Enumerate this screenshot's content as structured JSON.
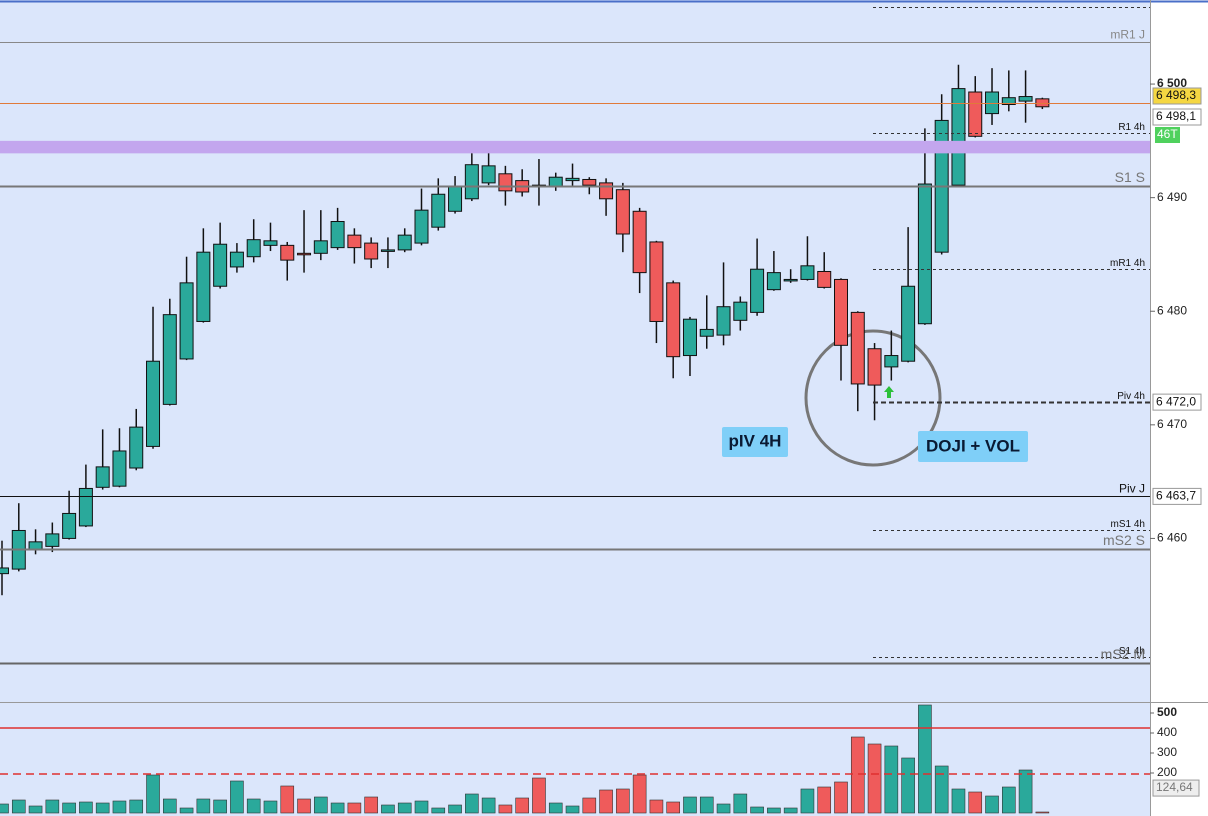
{
  "chart_data": {
    "type": "candlestick",
    "open": [
      6456.9,
      6457.3,
      6459.0,
      6459.3,
      6460.0,
      6461.1,
      6464.5,
      6464.6,
      6466.2,
      6468.1,
      6471.8,
      6475.8,
      6479.1,
      6482.2,
      6483.9,
      6484.8,
      6485.8,
      6485.8,
      6485.1,
      6485.1,
      6485.6,
      6486.7,
      6486.0,
      6485.3,
      6485.4,
      6486.0,
      6487.4,
      6488.8,
      6489.9,
      6491.3,
      6492.1,
      6491.5,
      6491.1,
      6491.0,
      6491.5,
      6491.6,
      6491.3,
      6490.7,
      6488.8,
      6486.1,
      6482.5,
      6476.1,
      6477.8,
      6477.9,
      6479.2,
      6479.9,
      6481.9,
      6482.7,
      6482.8,
      6483.5,
      6482.8,
      6479.9,
      6476.7,
      6475.1,
      6475.6,
      6478.9,
      6485.2,
      6491.1,
      6499.3,
      6497.4,
      6498.2,
      6498.5,
      6498.7
    ],
    "high": [
      6459.8,
      6463.1,
      6460.8,
      6461.4,
      6464.2,
      6466.5,
      6469.6,
      6469.7,
      6471.4,
      6480.4,
      6481.1,
      6484.8,
      6487.3,
      6487.8,
      6486.0,
      6488.1,
      6487.8,
      6486.1,
      6488.9,
      6488.9,
      6489.1,
      6487.3,
      6486.5,
      6486.5,
      6487.3,
      6490.8,
      6491.7,
      6491.9,
      6494.1,
      6494.0,
      6492.8,
      6492.5,
      6493.4,
      6492.2,
      6493.0,
      6491.8,
      6491.7,
      6491.3,
      6489.1,
      6486.2,
      6482.7,
      6479.5,
      6481.4,
      6484.3,
      6481.3,
      6486.4,
      6485.3,
      6483.7,
      6486.6,
      6485.2,
      6482.9,
      6480.0,
      6477.2,
      6478.3,
      6487.4,
      6496.1,
      6499.1,
      6501.7,
      6500.7,
      6501.4,
      6501.2,
      6501.2,
      6498.8
    ],
    "low": [
      6455.0,
      6457.1,
      6458.6,
      6458.8,
      6459.9,
      6461.0,
      6464.3,
      6464.5,
      6466.0,
      6467.9,
      6471.7,
      6475.7,
      6479.0,
      6482.0,
      6483.4,
      6484.3,
      6485.3,
      6482.7,
      6483.4,
      6484.5,
      6485.4,
      6484.2,
      6483.8,
      6483.8,
      6485.2,
      6485.8,
      6487.1,
      6488.6,
      6489.7,
      6491.1,
      6489.3,
      6490.1,
      6489.3,
      6490.6,
      6490.9,
      6490.3,
      6488.4,
      6485.2,
      6481.6,
      6477.2,
      6474.1,
      6474.3,
      6476.7,
      6477.0,
      6478.3,
      6479.6,
      6481.8,
      6482.5,
      6482.7,
      6482.0,
      6473.9,
      6471.2,
      6470.4,
      6473.9,
      6475.5,
      6478.8,
      6485.0,
      6491.0,
      6495.3,
      6496.4,
      6497.6,
      6496.6,
      6497.8
    ],
    "close": [
      6457.4,
      6460.7,
      6459.7,
      6460.4,
      6462.2,
      6464.4,
      6466.3,
      6467.7,
      6469.8,
      6475.6,
      6479.7,
      6482.5,
      6485.2,
      6485.9,
      6485.2,
      6486.3,
      6486.2,
      6484.5,
      6485.0,
      6486.2,
      6487.9,
      6485.6,
      6484.6,
      6485.4,
      6486.7,
      6488.9,
      6490.3,
      6491.0,
      6492.9,
      6492.8,
      6490.6,
      6490.5,
      6491.0,
      6491.8,
      6491.7,
      6491.1,
      6489.9,
      6486.8,
      6483.4,
      6479.1,
      6476.0,
      6479.3,
      6478.4,
      6480.4,
      6480.8,
      6483.7,
      6483.4,
      6482.8,
      6484.0,
      6482.1,
      6477.0,
      6473.6,
      6473.5,
      6476.1,
      6482.2,
      6491.2,
      6496.8,
      6499.6,
      6495.4,
      6499.3,
      6498.8,
      6498.9,
      6498.0
    ],
    "volume": [
      45,
      65,
      35,
      65,
      50,
      55,
      50,
      60,
      65,
      190,
      70,
      25,
      70,
      65,
      160,
      70,
      60,
      135,
      70,
      80,
      50,
      50,
      80,
      40,
      50,
      60,
      25,
      40,
      95,
      75,
      40,
      75,
      175,
      50,
      35,
      75,
      115,
      120,
      190,
      65,
      55,
      80,
      80,
      45,
      95,
      30,
      25,
      25,
      120,
      130,
      155,
      380,
      345,
      335,
      275,
      540,
      235,
      120,
      105,
      85,
      130,
      215,
      5
    ],
    "up_color": "#2aa99b",
    "down_color": "#ef5b5b",
    "ylim": [
      6445.6,
      6507.4
    ],
    "yticks": [
      {
        "value": 6460,
        "label": "6 460"
      },
      {
        "value": 6470,
        "label": "6 470"
      },
      {
        "value": 6480,
        "label": "6 480"
      },
      {
        "value": 6490,
        "label": "6 490"
      },
      {
        "value": 6500,
        "label": "6 500"
      }
    ],
    "levels": [
      {
        "value": 6506.8,
        "style": "dashed",
        "color": "#333333"
      },
      {
        "label": "mR1 J",
        "value": 6503.7,
        "style": "solid",
        "color": "#888888"
      },
      {
        "value": 6498.3,
        "style": "solid",
        "color": "#e07a3a"
      },
      {
        "label": "R1 4h",
        "value": 6495.7,
        "style": "dashed",
        "color": "#333333"
      },
      {
        "label": "S1 S",
        "value": 6491.0,
        "style": "solid",
        "color": "#777777"
      },
      {
        "label": "mR1 4h",
        "value": 6483.7,
        "style": "dashed",
        "color": "#333333"
      },
      {
        "label": "Piv 4h",
        "value": 6472.0,
        "style": "dashed",
        "color": "#333333"
      },
      {
        "label": "Piv J",
        "value": 6463.7,
        "style": "solid",
        "color": "#111111"
      },
      {
        "label": "mS1 4h",
        "value": 6460.7,
        "style": "dashed",
        "color": "#333333"
      },
      {
        "label": "mS2 S",
        "value": 6459.1,
        "style": "solid",
        "color": "#777777"
      },
      {
        "label": "S1 4h",
        "value": 6449.6,
        "style": "dashed",
        "color": "#333333"
      },
      {
        "label": "mS2 M",
        "value": 6449.0,
        "style": "solid",
        "color": "#666666"
      }
    ],
    "zone": {
      "from": 6493.9,
      "to": 6495.0,
      "color": "#c3a6ee"
    },
    "price_tags": [
      {
        "value": 6498.3,
        "label": "6 498,3",
        "color": "#f5d742"
      },
      {
        "value": 6498.1,
        "label": "6 498,1",
        "color": "#ffffff"
      },
      {
        "value": 6472.0,
        "label": "6 472,0",
        "color": "#ffffff"
      },
      {
        "value": 6463.7,
        "label": "6 463,7",
        "color": "#ffffff"
      }
    ],
    "timer_tag": "46T",
    "annotations": [
      "pIV 4H",
      "DOJI + VOL"
    ],
    "volume_ylim": [
      0,
      550
    ],
    "volume_yticks": [
      200,
      300,
      400,
      500
    ],
    "volume_levels": [
      {
        "value": 425,
        "style": "solid",
        "color": "#e03030"
      },
      {
        "value": 195,
        "style": "dashed",
        "color": "#e03030"
      }
    ],
    "volume_ma": {
      "value": 124.64,
      "label": "124,64"
    }
  }
}
